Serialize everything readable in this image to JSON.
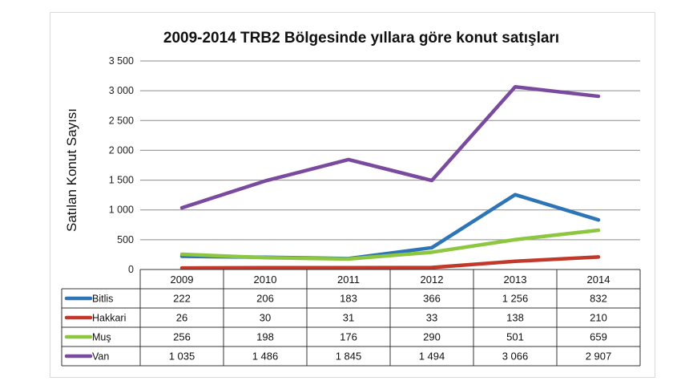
{
  "chart_data": {
    "type": "line",
    "title": "2009-2014 TRB2 Bölgesinde yıllara göre konut satışları",
    "ylabel": "Satılan Konut Sayısı",
    "xlabel": "",
    "ylim": [
      0,
      3500
    ],
    "y_ticks": [
      0,
      500,
      1000,
      1500,
      2000,
      2500,
      3000,
      3500
    ],
    "y_tick_labels": [
      "0",
      "500",
      "1 000",
      "1 500",
      "2 000",
      "2 500",
      "3 000",
      "3 500"
    ],
    "grid": true,
    "legend": "data-table-below",
    "categories": [
      "2009",
      "2010",
      "2011",
      "2012",
      "2013",
      "2014"
    ],
    "series": [
      {
        "name": "Bitlis",
        "color": "#2e75b6",
        "values": [
          222,
          206,
          183,
          366,
          1256,
          832
        ],
        "labels": [
          "222",
          "206",
          "183",
          "366",
          "1 256",
          "832"
        ]
      },
      {
        "name": "Hakkari",
        "color": "#c0392b",
        "values": [
          26,
          30,
          31,
          33,
          138,
          210
        ],
        "labels": [
          "26",
          "30",
          "31",
          "33",
          "138",
          "210"
        ]
      },
      {
        "name": "Muş",
        "color": "#8dc63f",
        "values": [
          256,
          198,
          176,
          290,
          501,
          659
        ],
        "labels": [
          "256",
          "198",
          "176",
          "290",
          "501",
          "659"
        ]
      },
      {
        "name": "Van",
        "color": "#7a4a9e",
        "values": [
          1035,
          1486,
          1845,
          1494,
          3066,
          2907
        ],
        "labels": [
          "1 035",
          "1 486",
          "1 845",
          "1 494",
          "3 066",
          "2 907"
        ]
      }
    ]
  }
}
